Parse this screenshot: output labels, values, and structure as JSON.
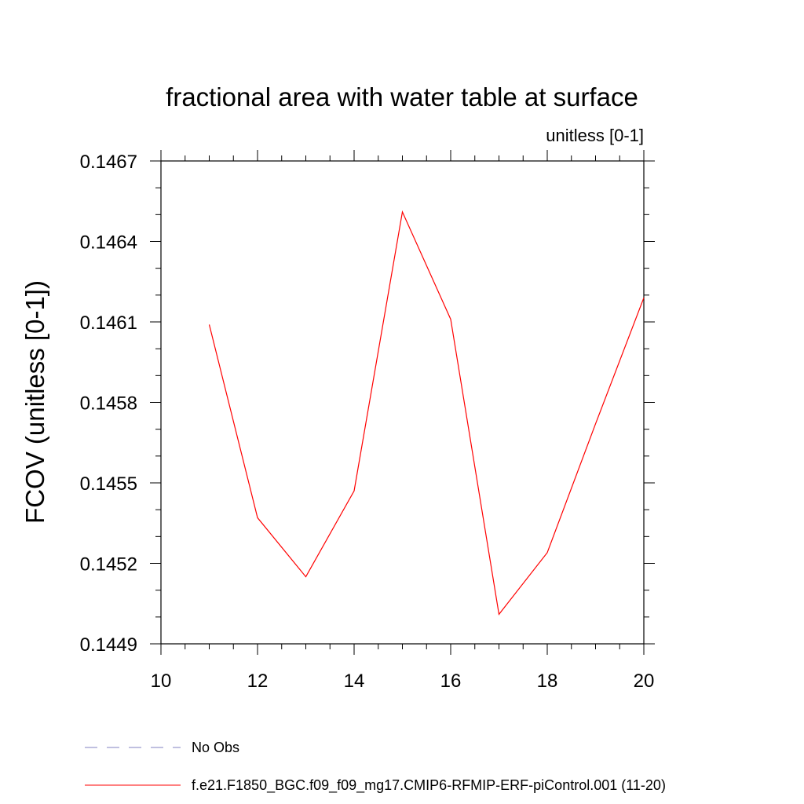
{
  "chart_data": {
    "type": "line",
    "title": "fractional area with water table at surface",
    "subtitle": "unitless [0-1]",
    "xlabel": "",
    "ylabel": "FCOV  (unitless [0-1])",
    "xlim": [
      10,
      20
    ],
    "ylim": [
      0.1449,
      0.1467
    ],
    "x_ticks": [
      10,
      12,
      14,
      16,
      18,
      20
    ],
    "x_tick_labels": [
      "10",
      "12",
      "14",
      "16",
      "18",
      "20"
    ],
    "y_ticks": [
      0.1449,
      0.1452,
      0.1455,
      0.1458,
      0.1461,
      0.1464,
      0.1467
    ],
    "y_tick_labels": [
      "0.1449",
      "0.1452",
      "0.1455",
      "0.1458",
      "0.1461",
      "0.1464",
      "0.1467"
    ],
    "grid": false,
    "legend_position": "bottom",
    "legend": [
      {
        "label": "No Obs",
        "color": "#8080c0",
        "style": "dashed"
      },
      {
        "label": "f.e21.F1850_BGC.f09_f09_mg17.CMIP6-RFMIP-ERF-piControl.001 (11-20)",
        "color": "#ff0000",
        "style": "solid"
      }
    ],
    "series": [
      {
        "color": "#ff0000",
        "x": [
          11,
          12,
          13,
          14,
          15,
          16,
          17,
          18,
          19,
          20
        ],
        "y": [
          0.14609,
          0.14537,
          0.14515,
          0.14547,
          0.14651,
          0.14611,
          0.14501,
          0.14524,
          0.14572,
          0.14619
        ]
      }
    ]
  }
}
